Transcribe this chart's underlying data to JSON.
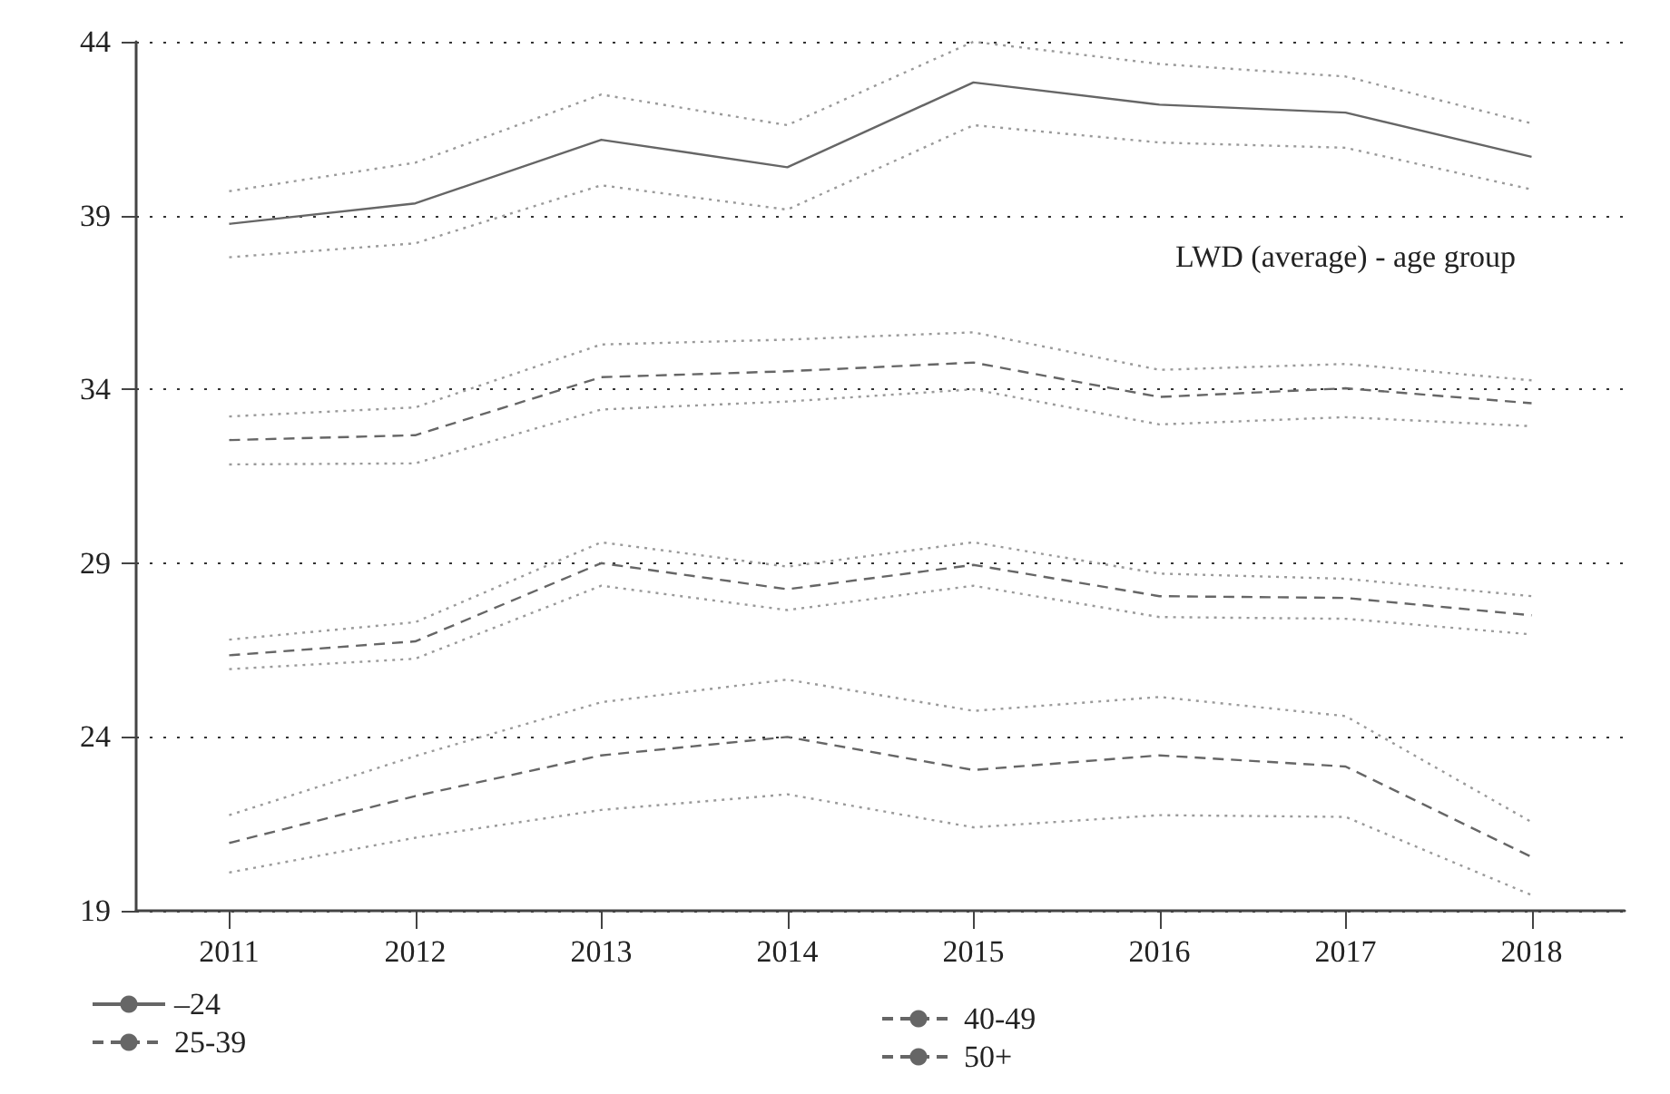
{
  "chart_data": {
    "type": "line",
    "title": "LWD (average) - age group",
    "categories": [
      "2011",
      "2012",
      "2013",
      "2014",
      "2015",
      "2016",
      "2017",
      "2018"
    ],
    "series": [
      {
        "name": "–24",
        "color": "#666666",
        "line_style": "solid",
        "values": [
          38.76,
          39.35,
          41.18,
          40.39,
          42.83,
          42.19,
          41.96,
          40.69
        ]
      },
      {
        "color": "#9a9a9a",
        "line_style": "dotted",
        "values": [
          37.8,
          38.2,
          39.87,
          39.17,
          41.6,
          41.1,
          40.95,
          39.75
        ]
      },
      {
        "color": "#9a9a9a",
        "line_style": "dotted",
        "values": [
          39.7,
          40.52,
          42.48,
          41.6,
          44.0,
          43.36,
          43.0,
          41.65
        ]
      },
      {
        "name": "25-39",
        "color": "#666666",
        "line_style": "dashed",
        "values": [
          32.54,
          32.68,
          34.35,
          34.52,
          34.77,
          33.78,
          34.03,
          33.6
        ]
      },
      {
        "color": "#9a9a9a",
        "line_style": "dotted",
        "values": [
          31.84,
          31.87,
          33.42,
          33.65,
          34.0,
          32.99,
          33.2,
          32.94
        ]
      },
      {
        "color": "#9a9a9a",
        "line_style": "dotted",
        "values": [
          33.22,
          33.48,
          35.29,
          35.43,
          35.64,
          34.56,
          34.73,
          34.26
        ]
      },
      {
        "name": "40-49",
        "color": "#666666",
        "line_style": "dashed",
        "values": [
          26.35,
          26.75,
          29.0,
          28.25,
          28.95,
          28.05,
          28.0,
          27.5
        ]
      },
      {
        "color": "#9a9a9a",
        "line_style": "dotted",
        "values": [
          25.95,
          26.25,
          28.35,
          27.65,
          28.35,
          27.45,
          27.4,
          26.95
        ]
      },
      {
        "color": "#9a9a9a",
        "line_style": "dotted",
        "values": [
          26.8,
          27.3,
          29.6,
          28.9,
          29.6,
          28.7,
          28.55,
          28.05
        ]
      },
      {
        "name": "50+",
        "color": "#666666",
        "line_style": "dashed",
        "values": [
          20.95,
          22.3,
          23.47,
          24.0,
          23.05,
          23.47,
          23.15,
          20.55
        ]
      },
      {
        "color": "#9a9a9a",
        "line_style": "dotted",
        "values": [
          20.1,
          21.1,
          21.9,
          22.35,
          21.4,
          21.75,
          21.7,
          19.45
        ]
      },
      {
        "color": "#9a9a9a",
        "line_style": "dotted",
        "values": [
          21.75,
          23.45,
          25.0,
          25.65,
          24.75,
          25.15,
          24.6,
          21.55
        ]
      }
    ],
    "ylim": [
      19,
      44
    ],
    "yticks": [
      19,
      24,
      29,
      34,
      39,
      44
    ],
    "grid": "y",
    "legend": "bottom",
    "marker": "none"
  }
}
